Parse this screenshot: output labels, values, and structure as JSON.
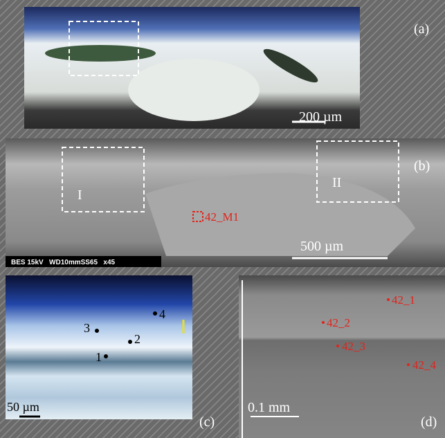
{
  "panels": {
    "a": {
      "label": "(a)",
      "scale_bar": "200 µm"
    },
    "b": {
      "label": "(b)",
      "regions": [
        "I",
        "II"
      ],
      "point": "42_M1",
      "scale_bar": "500 µm",
      "info_bar": "BES 15kV   WD10mmSS65   x45"
    },
    "c": {
      "label": "(c)",
      "points": [
        "1",
        "2",
        "3",
        "4"
      ],
      "scale_bar": "50 µm"
    },
    "d": {
      "label": "(d)",
      "points": [
        "42_1",
        "42_2",
        "42_3",
        "42_4"
      ],
      "scale_bar": "0.1 mm"
    }
  }
}
